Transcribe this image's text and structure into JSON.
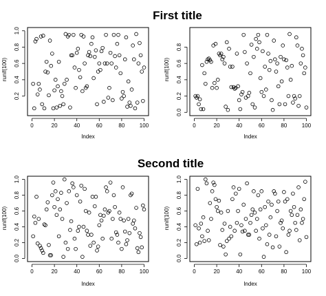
{
  "titles": {
    "top": "First title",
    "bottom": "Second title"
  },
  "chart_data": [
    {
      "type": "scatter",
      "panel": "top-left",
      "xlabel": "Index",
      "ylabel": "runif(100)",
      "xlim": [
        0,
        100
      ],
      "ylim": [
        0,
        1
      ],
      "xticks": [
        0,
        20,
        40,
        60,
        80,
        100
      ],
      "yticks": [
        0.2,
        0.4,
        0.6,
        0.8,
        1.0
      ],
      "x": [
        1,
        2,
        3,
        4,
        5,
        6,
        7,
        8,
        9,
        10,
        11,
        12,
        13,
        14,
        15,
        16,
        17,
        18,
        19,
        20,
        21,
        22,
        23,
        24,
        25,
        26,
        27,
        28,
        29,
        30,
        31,
        32,
        33,
        34,
        35,
        36,
        37,
        38,
        39,
        40,
        41,
        42,
        43,
        44,
        45,
        46,
        47,
        48,
        49,
        50,
        51,
        52,
        53,
        54,
        55,
        56,
        57,
        58,
        59,
        60,
        61,
        62,
        63,
        64,
        65,
        66,
        67,
        68,
        69,
        70,
        71,
        72,
        73,
        74,
        75,
        76,
        77,
        78,
        79,
        80,
        81,
        82,
        83,
        84,
        85,
        86,
        87,
        88,
        89,
        90,
        91,
        92,
        93,
        94,
        95,
        96,
        97,
        98,
        99,
        100
      ],
      "y": [
        0.35,
        0.05,
        0.87,
        0.9,
        0.22,
        0.35,
        0.28,
        0.93,
        0.1,
        0.94,
        0.05,
        0.5,
        0.62,
        0.49,
        0.21,
        0.88,
        0.57,
        0.72,
        0.05,
        0.27,
        0.4,
        0.06,
        0.32,
        0.62,
        0.08,
        0.26,
        0.2,
        0.1,
        0.35,
        0.96,
        0.4,
        0.93,
        0.95,
        0.06,
        0.7,
        0.7,
        0.95,
        0.55,
        0.3,
        0.73,
        0.78,
        0.52,
        0.43,
        0.95,
        0.26,
        0.93,
        0.6,
        0.3,
        0.32,
        0.7,
        0.74,
        0.69,
        0.84,
        0.92,
        0.42,
        0.68,
        0.76,
        0.1,
        0.5,
        0.6,
        0.52,
        0.75,
        0.79,
        0.13,
        0.6,
        0.95,
        0.6,
        0.18,
        0.3,
        0.73,
        0.6,
        0.15,
        0.95,
        0.69,
        0.55,
        0.84,
        0.95,
        0.7,
        0.48,
        0.17,
        0.25,
        0.2,
        0.65,
        0.92,
        0.07,
        0.38,
        0.12,
        0.08,
        0.28,
        0.82,
        0.65,
        0.05,
        0.96,
        0.12,
        0.6,
        0.85,
        0.7,
        0.5,
        0.14,
        0.55
      ]
    },
    {
      "type": "scatter",
      "panel": "top-right",
      "xlabel": "Index",
      "ylabel": "runif(100)",
      "xlim": [
        0,
        100
      ],
      "ylim": [
        0,
        1
      ],
      "xticks": [
        0,
        20,
        40,
        60,
        80,
        100
      ],
      "yticks": [
        0.0,
        0.2,
        0.4,
        0.6,
        0.8
      ],
      "x": [
        1,
        2,
        3,
        4,
        5,
        6,
        7,
        8,
        9,
        10,
        11,
        12,
        13,
        14,
        15,
        16,
        17,
        18,
        19,
        20,
        21,
        22,
        23,
        24,
        25,
        26,
        27,
        28,
        29,
        30,
        31,
        32,
        33,
        34,
        35,
        36,
        37,
        38,
        39,
        40,
        41,
        42,
        43,
        44,
        45,
        46,
        47,
        48,
        49,
        50,
        51,
        52,
        53,
        54,
        55,
        56,
        57,
        58,
        59,
        60,
        61,
        62,
        63,
        64,
        65,
        66,
        67,
        68,
        69,
        70,
        71,
        72,
        73,
        74,
        75,
        76,
        77,
        78,
        79,
        80,
        81,
        82,
        83,
        84,
        85,
        86,
        87,
        88,
        89,
        90,
        91,
        92,
        93,
        94,
        95,
        96,
        97,
        98,
        99,
        100
      ],
      "y": [
        0.2,
        0.18,
        0.2,
        0.1,
        0.16,
        0.04,
        0.58,
        0.04,
        0.48,
        0.35,
        0.62,
        0.65,
        0.66,
        0.64,
        0.62,
        0.3,
        0.82,
        0.36,
        0.84,
        0.3,
        0.4,
        0.72,
        0.7,
        0.72,
        0.65,
        0.68,
        0.6,
        0.07,
        0.86,
        0.03,
        0.78,
        0.56,
        0.31,
        0.56,
        0.31,
        0.29,
        0.3,
        0.72,
        0.32,
        0.15,
        0.04,
        0.22,
        0.25,
        0.95,
        0.74,
        0.18,
        0.6,
        0.2,
        0.24,
        0.48,
        0.83,
        0.1,
        0.68,
        0.06,
        0.9,
        0.78,
        0.95,
        0.86,
        0.42,
        0.25,
        0.75,
        0.2,
        0.56,
        0.28,
        0.95,
        0.72,
        0.52,
        0.63,
        0.15,
        0.03,
        0.88,
        0.65,
        0.5,
        0.6,
        0.32,
        0.1,
        0.68,
        0.38,
        0.82,
        0.65,
        0.1,
        0.64,
        0.55,
        0.2,
        0.96,
        0.4,
        0.57,
        0.12,
        0.2,
        0.17,
        0.92,
        0.82,
        0.08,
        0.2,
        0.6,
        0.78,
        0.7,
        0.48,
        0.55,
        0.06
      ]
    },
    {
      "type": "scatter",
      "panel": "bottom-left",
      "xlabel": "Index",
      "ylabel": "runif(100)",
      "xlim": [
        0,
        100
      ],
      "ylim": [
        0,
        1
      ],
      "xticks": [
        0,
        20,
        40,
        60,
        80,
        100
      ],
      "yticks": [
        0.0,
        0.2,
        0.4,
        0.6,
        0.8,
        1.0
      ],
      "x": [
        1,
        2,
        3,
        4,
        5,
        6,
        7,
        8,
        9,
        10,
        11,
        12,
        13,
        14,
        15,
        16,
        17,
        18,
        19,
        20,
        21,
        22,
        23,
        24,
        25,
        26,
        27,
        28,
        29,
        30,
        31,
        32,
        33,
        34,
        35,
        36,
        37,
        38,
        39,
        40,
        41,
        42,
        43,
        44,
        45,
        46,
        47,
        48,
        49,
        50,
        51,
        52,
        53,
        54,
        55,
        56,
        57,
        58,
        59,
        60,
        61,
        62,
        63,
        64,
        65,
        66,
        67,
        68,
        69,
        70,
        71,
        72,
        73,
        74,
        75,
        76,
        77,
        78,
        79,
        80,
        81,
        82,
        83,
        84,
        85,
        86,
        87,
        88,
        89,
        90,
        91,
        92,
        93,
        94,
        95,
        96,
        97,
        98,
        99,
        100
      ],
      "y": [
        0.28,
        0.53,
        0.45,
        0.78,
        0.19,
        0.5,
        0.16,
        0.13,
        0.1,
        0.07,
        0.43,
        0.42,
        0.62,
        0.71,
        0.17,
        0.04,
        0.04,
        0.8,
        0.96,
        0.65,
        0.85,
        0.55,
        0.75,
        0.28,
        0.62,
        0.83,
        0.5,
        0.02,
        1.0,
        0.2,
        0.7,
        0.12,
        0.85,
        0.36,
        0.47,
        0.95,
        0.9,
        0.25,
        0.12,
        0.8,
        0.35,
        0.4,
        0.72,
        0.92,
        0.02,
        0.4,
        0.88,
        0.6,
        0.35,
        0.3,
        0.58,
        0.16,
        0.3,
        0.78,
        0.2,
        0.66,
        0.78,
        0.1,
        0.15,
        0.42,
        0.55,
        0.48,
        0.25,
        0.54,
        0.62,
        0.9,
        0.85,
        0.58,
        0.6,
        0.96,
        0.25,
        0.5,
        0.8,
        0.65,
        0.33,
        0.3,
        0.2,
        0.58,
        0.5,
        0.12,
        0.9,
        0.48,
        0.34,
        0.18,
        0.23,
        0.5,
        0.32,
        0.8,
        0.82,
        0.44,
        0.48,
        0.38,
        0.64,
        0.13,
        0.08,
        0.32,
        0.27,
        0.14,
        0.67,
        0.62
      ]
    },
    {
      "type": "scatter",
      "panel": "bottom-right",
      "xlabel": "Index",
      "ylabel": "runif(100)",
      "xlim": [
        0,
        100
      ],
      "ylim": [
        0,
        1
      ],
      "xticks": [
        0,
        20,
        40,
        60,
        80,
        100
      ],
      "yticks": [
        0.0,
        0.2,
        0.4,
        0.6,
        0.8,
        1.0
      ],
      "x": [
        1,
        2,
        3,
        4,
        5,
        6,
        7,
        8,
        9,
        10,
        11,
        12,
        13,
        14,
        15,
        16,
        17,
        18,
        19,
        20,
        21,
        22,
        23,
        24,
        25,
        26,
        27,
        28,
        29,
        30,
        31,
        32,
        33,
        34,
        35,
        36,
        37,
        38,
        39,
        40,
        41,
        42,
        43,
        44,
        45,
        46,
        47,
        48,
        49,
        50,
        51,
        52,
        53,
        54,
        55,
        56,
        57,
        58,
        59,
        60,
        61,
        62,
        63,
        64,
        65,
        66,
        67,
        68,
        69,
        70,
        71,
        72,
        73,
        74,
        75,
        76,
        77,
        78,
        79,
        80,
        81,
        82,
        83,
        84,
        85,
        86,
        87,
        88,
        89,
        90,
        91,
        92,
        93,
        94,
        95,
        96,
        97,
        98,
        99,
        100
      ],
      "y": [
        0.42,
        0.18,
        0.88,
        0.38,
        0.2,
        0.44,
        0.28,
        0.52,
        0.22,
        1.0,
        0.95,
        0.35,
        0.23,
        0.7,
        0.5,
        0.85,
        0.96,
        0.93,
        0.75,
        0.65,
        0.6,
        0.73,
        0.17,
        0.58,
        0.36,
        0.15,
        0.44,
        0.05,
        0.22,
        0.6,
        0.25,
        0.4,
        0.28,
        0.75,
        0.9,
        0.35,
        0.82,
        0.45,
        0.6,
        0.88,
        0.05,
        0.42,
        0.34,
        0.68,
        0.35,
        0.5,
        0.95,
        0.3,
        0.3,
        0.45,
        0.55,
        0.62,
        0.85,
        0.58,
        0.35,
        0.5,
        0.8,
        0.25,
        0.62,
        0.85,
        0.38,
        0.02,
        0.65,
        0.42,
        0.18,
        0.72,
        0.3,
        0.52,
        0.68,
        0.14,
        0.85,
        0.82,
        0.28,
        0.6,
        0.72,
        0.15,
        0.45,
        0.48,
        0.38,
        0.84,
        0.72,
        0.08,
        0.75,
        0.3,
        0.35,
        0.6,
        0.55,
        0.82,
        0.65,
        0.45,
        0.36,
        0.55,
        0.9,
        0.23,
        0.62,
        0.45,
        0.5,
        0.75,
        0.97,
        0.27
      ]
    }
  ]
}
